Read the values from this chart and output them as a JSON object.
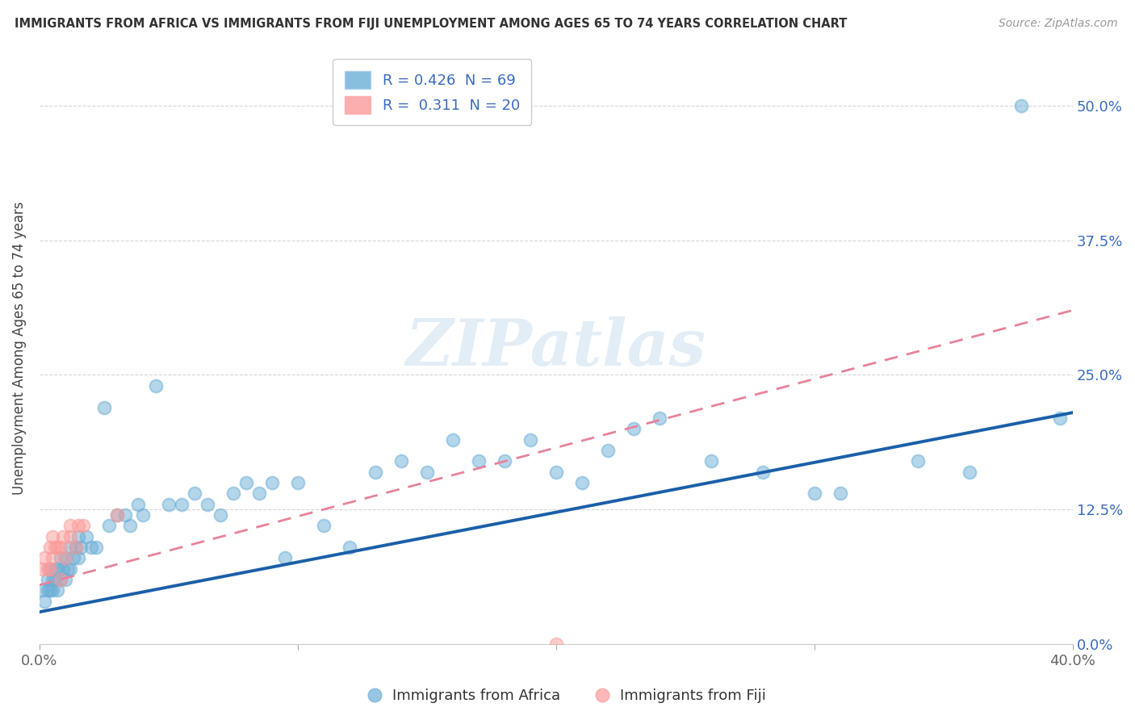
{
  "title": "IMMIGRANTS FROM AFRICA VS IMMIGRANTS FROM FIJI UNEMPLOYMENT AMONG AGES 65 TO 74 YEARS CORRELATION CHART",
  "source": "Source: ZipAtlas.com",
  "xlabel": "",
  "ylabel": "Unemployment Among Ages 65 to 74 years",
  "xlim": [
    0.0,
    0.4
  ],
  "ylim": [
    0.0,
    0.55
  ],
  "yticks": [
    0.0,
    0.125,
    0.25,
    0.375,
    0.5
  ],
  "yticklabels": [
    "0.0%",
    "12.5%",
    "25.0%",
    "37.5%",
    "50.0%"
  ],
  "xticks": [
    0.0,
    0.1,
    0.2,
    0.3,
    0.4
  ],
  "xticklabels": [
    "0.0%",
    "",
    "",
    "",
    "40.0%"
  ],
  "africa_color": "#6baed6",
  "africa_edge": "#6baed6",
  "fiji_color": "#fb9a99",
  "fiji_edge": "#fb9a99",
  "africa_R": 0.426,
  "africa_N": 69,
  "fiji_R": 0.311,
  "fiji_N": 20,
  "africa_line_color": "#1a5fa8",
  "fiji_line_color": "#e8829a",
  "watermark": "ZIPatlas",
  "background_color": "#ffffff",
  "africa_x": [
    0.001,
    0.002,
    0.003,
    0.003,
    0.004,
    0.004,
    0.005,
    0.005,
    0.006,
    0.006,
    0.007,
    0.007,
    0.008,
    0.008,
    0.009,
    0.01,
    0.01,
    0.011,
    0.012,
    0.012,
    0.013,
    0.014,
    0.015,
    0.015,
    0.016,
    0.018,
    0.02,
    0.022,
    0.025,
    0.027,
    0.03,
    0.033,
    0.035,
    0.038,
    0.04,
    0.045,
    0.05,
    0.055,
    0.06,
    0.065,
    0.07,
    0.075,
    0.08,
    0.085,
    0.09,
    0.095,
    0.1,
    0.11,
    0.12,
    0.13,
    0.14,
    0.15,
    0.16,
    0.17,
    0.18,
    0.19,
    0.2,
    0.21,
    0.22,
    0.23,
    0.24,
    0.26,
    0.28,
    0.3,
    0.31,
    0.34,
    0.36,
    0.38,
    0.395
  ],
  "africa_y": [
    0.05,
    0.04,
    0.05,
    0.06,
    0.05,
    0.07,
    0.06,
    0.05,
    0.07,
    0.06,
    0.05,
    0.07,
    0.06,
    0.08,
    0.07,
    0.06,
    0.08,
    0.07,
    0.07,
    0.09,
    0.08,
    0.09,
    0.08,
    0.1,
    0.09,
    0.1,
    0.09,
    0.09,
    0.22,
    0.11,
    0.12,
    0.12,
    0.11,
    0.13,
    0.12,
    0.24,
    0.13,
    0.13,
    0.14,
    0.13,
    0.12,
    0.14,
    0.15,
    0.14,
    0.15,
    0.08,
    0.15,
    0.11,
    0.09,
    0.16,
    0.17,
    0.16,
    0.19,
    0.17,
    0.17,
    0.19,
    0.16,
    0.15,
    0.18,
    0.2,
    0.21,
    0.17,
    0.16,
    0.14,
    0.14,
    0.17,
    0.16,
    0.5,
    0.21
  ],
  "fiji_x": [
    0.001,
    0.002,
    0.003,
    0.004,
    0.004,
    0.005,
    0.005,
    0.006,
    0.007,
    0.008,
    0.008,
    0.009,
    0.01,
    0.012,
    0.012,
    0.014,
    0.015,
    0.017,
    0.03,
    0.2
  ],
  "fiji_y": [
    0.07,
    0.08,
    0.07,
    0.07,
    0.09,
    0.08,
    0.1,
    0.09,
    0.09,
    0.06,
    0.09,
    0.1,
    0.08,
    0.1,
    0.11,
    0.09,
    0.11,
    0.11,
    0.12,
    0.0
  ],
  "africa_line_x0": 0.0,
  "africa_line_y0": 0.03,
  "africa_line_x1": 0.4,
  "africa_line_y1": 0.215,
  "fiji_line_x0": 0.0,
  "fiji_line_y0": 0.055,
  "fiji_line_x1": 0.4,
  "fiji_line_y1": 0.31
}
